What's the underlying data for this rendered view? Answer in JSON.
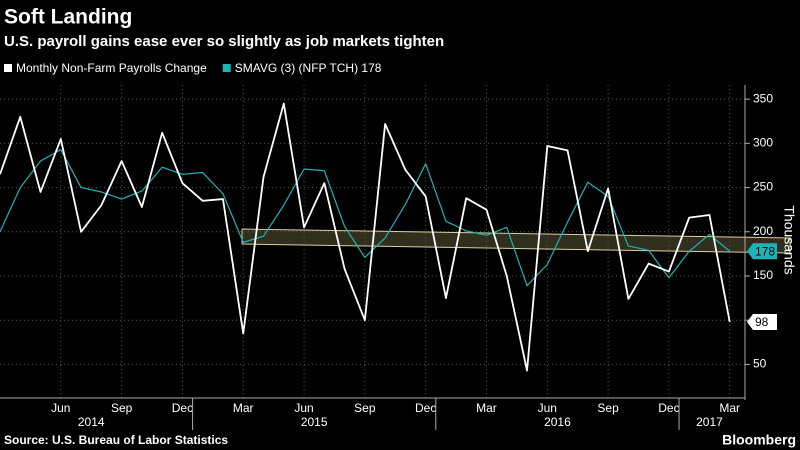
{
  "chart_data": {
    "type": "line",
    "title": "Soft Landing",
    "subtitle": "U.S. payroll gains ease ever so slightly as job markets tighten",
    "y_axis_label": "Thousands",
    "source": "Source: U.S. Bureau of Labor Statistics",
    "brand": "Bloomberg",
    "categories": [
      null,
      null,
      null,
      "Jun",
      null,
      null,
      "Sep",
      null,
      null,
      "Dec",
      null,
      null,
      "Mar",
      null,
      null,
      "Jun",
      null,
      null,
      "Sep",
      null,
      null,
      "Dec",
      null,
      null,
      "Mar",
      null,
      null,
      "Jun",
      null,
      null,
      "Sep",
      null,
      null,
      "Dec",
      null,
      null,
      "Mar"
    ],
    "years": [
      "2014",
      "2015",
      "2016",
      "2017"
    ],
    "series": [
      {
        "name": "Monthly Non-Farm Payrolls Change",
        "color": "#ffffff",
        "end_label": "98",
        "values": [
          265,
          330,
          245,
          305,
          200,
          230,
          280,
          228,
          312,
          255,
          235,
          237,
          85,
          262,
          345,
          205,
          255,
          158,
          100,
          322,
          270,
          240,
          125,
          238,
          225,
          150,
          43,
          297,
          292,
          178,
          249,
          124,
          164,
          155,
          216,
          219,
          98
        ]
      },
      {
        "name": "SMAVG (3) (NFP TCH) 178",
        "color": "#1fb3b8",
        "end_label": "178",
        "values": [
          200,
          250,
          280,
          293,
          250,
          245,
          237,
          246,
          273,
          265,
          267,
          243,
          188,
          195,
          230,
          271,
          269,
          206,
          171,
          193,
          231,
          277,
          212,
          201,
          196,
          205,
          139,
          163,
          211,
          256,
          240,
          184,
          179,
          148,
          178,
          197,
          178
        ]
      }
    ],
    "ylim": [
      12,
      366
    ],
    "yticks": [
      50,
      100,
      150,
      200,
      250,
      300,
      350
    ],
    "grid": true
  }
}
